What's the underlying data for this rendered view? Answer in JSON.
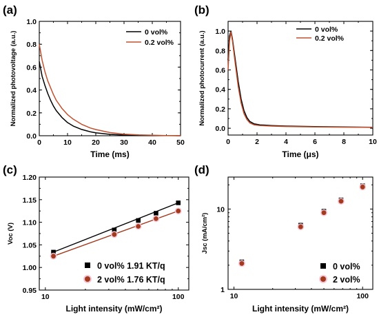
{
  "colors": {
    "black": "#000000",
    "red": "#c0502e",
    "red_marker": "#a33a1e",
    "glow": "#f4c7d6"
  },
  "chart_data": [
    {
      "panel": "(a)",
      "type": "line",
      "xlabel": "Time (ms)",
      "ylabel": "Normalized photovoltage (a.u.)",
      "xlim": [
        0,
        50
      ],
      "ylim": [
        0,
        1.0
      ],
      "xticks": [
        "0",
        "10",
        "20",
        "30",
        "40",
        "50"
      ],
      "yticks": [
        "0.0",
        "0.2",
        "0.4",
        "0.6",
        "0.8",
        "1.0"
      ],
      "legend_position": "top-right",
      "series": [
        {
          "name": "0 vol%",
          "color": "#000000",
          "x": [
            0,
            1,
            2,
            3,
            4,
            5,
            6,
            8,
            10,
            12,
            15,
            18,
            20,
            25,
            30,
            35,
            40,
            45,
            50
          ],
          "y": [
            0.65,
            0.52,
            0.44,
            0.37,
            0.31,
            0.26,
            0.22,
            0.16,
            0.115,
            0.085,
            0.055,
            0.035,
            0.026,
            0.012,
            0.006,
            0.003,
            0.002,
            0.001,
            0.0
          ]
        },
        {
          "name": "0.2 vol%",
          "color": "#c0502e",
          "x": [
            0,
            1,
            2,
            3,
            4,
            5,
            6,
            8,
            10,
            12,
            15,
            18,
            20,
            25,
            30,
            35,
            40,
            45,
            50
          ],
          "y": [
            0.8,
            0.66,
            0.56,
            0.48,
            0.42,
            0.36,
            0.31,
            0.24,
            0.185,
            0.145,
            0.1,
            0.068,
            0.054,
            0.028,
            0.014,
            0.007,
            0.004,
            0.002,
            0.001
          ]
        }
      ]
    },
    {
      "panel": "(b)",
      "type": "line",
      "xlabel": "Time (μs)",
      "ylabel": "Normalized photocurrent (a.u.)",
      "xlim": [
        0,
        10
      ],
      "ylim": [
        -0.07,
        1.1
      ],
      "xticks": [
        "0",
        "2",
        "4",
        "6",
        "8",
        "10"
      ],
      "yticks": [
        "0.0",
        "0.2",
        "0.4",
        "0.6",
        "0.8",
        "1.0"
      ],
      "legend_position": "top-right",
      "series": [
        {
          "name": "0 vol%",
          "color": "#000000",
          "x": [
            0.0,
            0.1,
            0.2,
            0.3,
            0.5,
            0.7,
            0.9,
            1.1,
            1.3,
            1.5,
            1.8,
            2.2,
            3,
            4,
            6,
            8,
            10
          ],
          "y": [
            0.7,
            0.95,
            1.0,
            0.92,
            0.7,
            0.48,
            0.3,
            0.18,
            0.11,
            0.07,
            0.045,
            0.035,
            0.028,
            0.022,
            0.017,
            0.013,
            0.01
          ]
        },
        {
          "name": "0.2 vol%",
          "color": "#c0502e",
          "x": [
            0.0,
            0.1,
            0.2,
            0.3,
            0.5,
            0.7,
            0.9,
            1.1,
            1.3,
            1.5,
            1.8,
            2.2,
            3,
            4,
            6,
            8,
            10
          ],
          "y": [
            0.6,
            0.9,
            0.99,
            0.9,
            0.66,
            0.43,
            0.26,
            0.15,
            0.09,
            0.055,
            0.035,
            0.028,
            0.022,
            0.018,
            0.014,
            0.011,
            0.009
          ]
        }
      ]
    },
    {
      "panel": "(c)",
      "type": "scatter",
      "xscale": "log",
      "xlabel": "Light intensity (mW/cm²)",
      "ylabel": "Voc (V)",
      "xlim": [
        9,
        120
      ],
      "ylim": [
        0.95,
        1.2
      ],
      "xticks": [
        "10",
        "100"
      ],
      "yticks": [
        "0.95",
        "1.00",
        "1.05",
        "1.10",
        "1.15",
        "1.20"
      ],
      "legend_position": "bottom-right",
      "series": [
        {
          "name": "0 vol% 1.91 KT/q",
          "marker": "square",
          "color": "#000000",
          "x": [
            11.5,
            33,
            50,
            68,
            100
          ],
          "y": [
            1.034,
            1.083,
            1.104,
            1.12,
            1.143
          ],
          "fit": {
            "x": [
              11.5,
              100
            ],
            "y": [
              1.034,
              1.143
            ]
          }
        },
        {
          "name": "2 vol% 1.76 KT/q",
          "marker": "circle",
          "color": "#a33a1e",
          "x": [
            11.5,
            33,
            50,
            68,
            100
          ],
          "y": [
            1.025,
            1.073,
            1.091,
            1.108,
            1.125
          ],
          "fit": {
            "x": [
              11.5,
              100
            ],
            "y": [
              1.025,
              1.125
            ]
          }
        }
      ]
    },
    {
      "panel": "(d)",
      "type": "scatter",
      "xscale": "log",
      "yscale": "log",
      "xlabel": "Light intensity (mW/cm²)",
      "ylabel": "Jsc (mA/cm²)",
      "xlim": [
        9,
        120
      ],
      "ylim": [
        1,
        25
      ],
      "xticks": [
        "10",
        "100"
      ],
      "yticks": [
        "1",
        "10"
      ],
      "legend_position": "bottom-right",
      "series": [
        {
          "name": "0 vol%",
          "marker": "square",
          "color": "#000000",
          "x": [
            11.5,
            33,
            50,
            68,
            100
          ],
          "y": [
            2.2,
            6.3,
            9.4,
            13.0,
            19.5
          ]
        },
        {
          "name": "2 vol%",
          "marker": "circle",
          "color": "#a33a1e",
          "x": [
            11.5,
            33,
            50,
            68,
            100
          ],
          "y": [
            2.1,
            6.0,
            9.0,
            12.5,
            18.8
          ]
        }
      ]
    }
  ]
}
